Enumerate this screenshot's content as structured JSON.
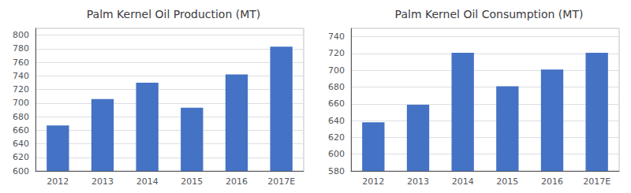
{
  "chart_data": [
    {
      "type": "bar",
      "title": "Palm Kernel Oil Production (MT)",
      "categories": [
        "2012",
        "2013",
        "2014",
        "2015",
        "2016",
        "2017E"
      ],
      "values": [
        667,
        706,
        730,
        693,
        742,
        783
      ],
      "color": "#4472C4",
      "ylim": [
        600,
        810
      ],
      "yticks": [
        600,
        620,
        640,
        660,
        680,
        700,
        720,
        740,
        760,
        780,
        800
      ],
      "grid": true
    },
    {
      "type": "bar",
      "title": "Palm Kernel Oil Consumption (MT)",
      "categories": [
        "2012",
        "2013",
        "2014",
        "2015",
        "2016",
        "2017E"
      ],
      "values": [
        638,
        659,
        721,
        681,
        701,
        721
      ],
      "color": "#4472C4",
      "ylim": [
        580,
        750
      ],
      "yticks": [
        580,
        600,
        620,
        640,
        660,
        680,
        700,
        720,
        740
      ],
      "grid": true
    }
  ]
}
